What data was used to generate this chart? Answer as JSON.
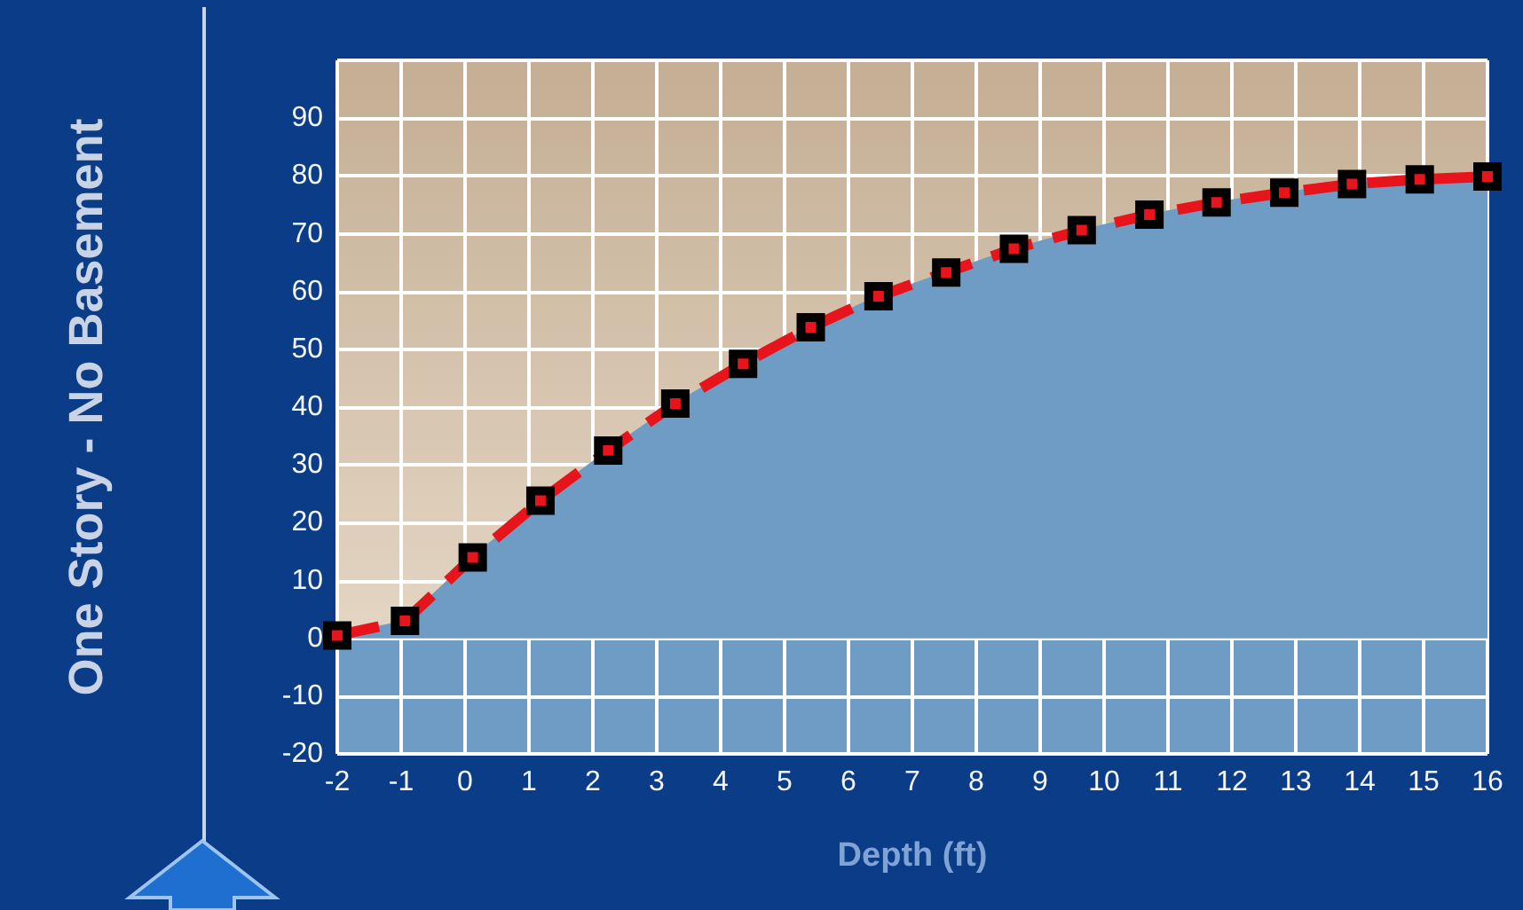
{
  "chart_data": {
    "type": "area",
    "ylabel": "One Story - No Basement",
    "xlabel": "Depth (ft)",
    "x": [
      -2,
      -0.94,
      0.12,
      1.18,
      2.24,
      3.29,
      4.35,
      5.41,
      6.47,
      7.53,
      8.59,
      9.65,
      10.71,
      11.76,
      12.82,
      13.88,
      14.94,
      16
    ],
    "series": [
      {
        "color": "#6f9cc4",
        "values": [
          0.5,
          3,
          14,
          23.8,
          32.5,
          40.6,
          47.5,
          53.8,
          59.2,
          63.3,
          67.4,
          70.6,
          73.3,
          75.4,
          77.1,
          78.6,
          79.4,
          79.9
        ]
      },
      {
        "type": "line",
        "color": "#e8141c",
        "values": [
          0.5,
          3,
          14,
          23.8,
          32.5,
          40.6,
          47.5,
          53.8,
          59.2,
          63.3,
          67.4,
          70.6,
          73.3,
          75.4,
          77.1,
          78.6,
          79.4,
          79.9
        ]
      }
    ],
    "xlim": [
      -2,
      16
    ],
    "xticks": [
      -2,
      -1,
      0,
      1,
      2,
      3,
      4,
      5,
      6,
      7,
      8,
      9,
      10,
      11,
      12,
      13,
      14,
      15,
      16
    ],
    "ylim": [
      -20,
      100
    ],
    "yticks": [
      -20,
      -10,
      0,
      10,
      20,
      30,
      40,
      50,
      60,
      70,
      80,
      90,
      {
        "value": 100,
        "label": null
      }
    ],
    "grid": true,
    "marker": "square",
    "line_style": "dashed"
  }
}
